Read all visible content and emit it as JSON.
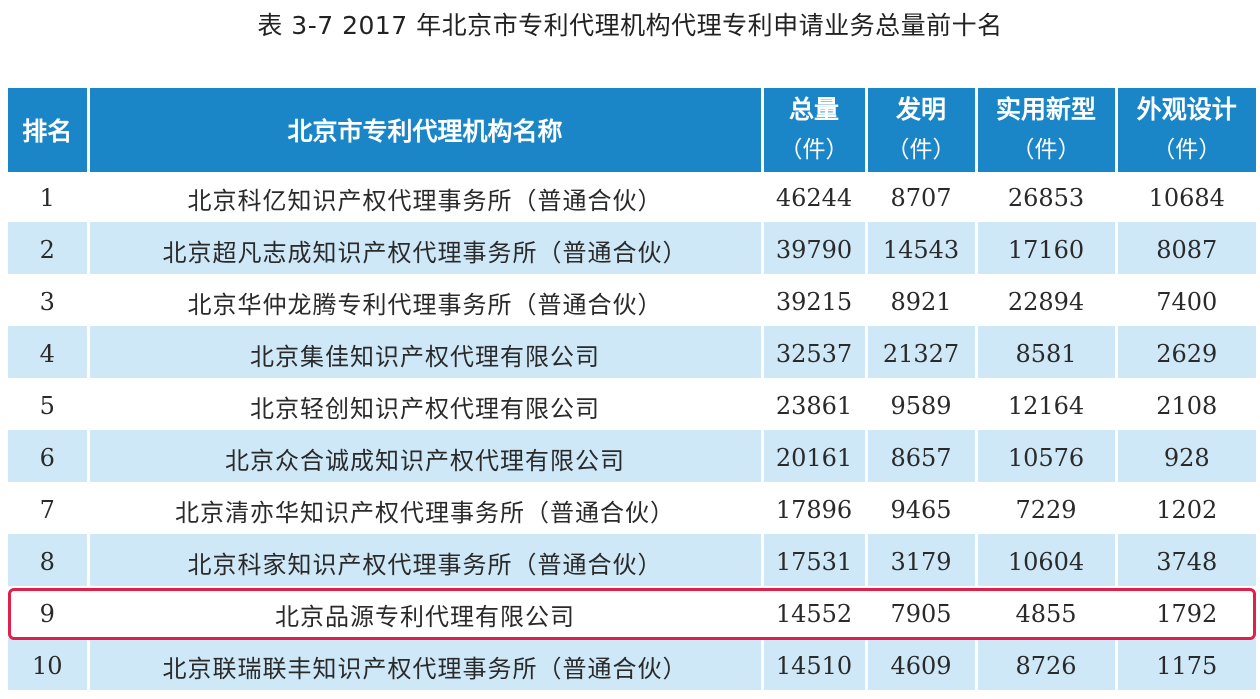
{
  "caption": "表 3-7 2017 年北京市专利代理机构代理专利申请业务总量前十名",
  "header": {
    "rank": "排名",
    "name": "北京市专利代理机构名称",
    "total": "总量",
    "invention": "发明",
    "utility": "实用新型",
    "design": "外观设计",
    "unit": "（件）"
  },
  "rows": [
    {
      "rank": "1",
      "name": "北京科亿知识产权代理事务所（普通合伙）",
      "total": "46244",
      "invention": "8707",
      "utility": "26853",
      "design": "10684"
    },
    {
      "rank": "2",
      "name": "北京超凡志成知识产权代理事务所（普通合伙）",
      "total": "39790",
      "invention": "14543",
      "utility": "17160",
      "design": "8087"
    },
    {
      "rank": "3",
      "name": "北京华仲龙腾专利代理事务所（普通合伙）",
      "total": "39215",
      "invention": "8921",
      "utility": "22894",
      "design": "7400"
    },
    {
      "rank": "4",
      "name": "北京集佳知识产权代理有限公司",
      "total": "32537",
      "invention": "21327",
      "utility": "8581",
      "design": "2629"
    },
    {
      "rank": "5",
      "name": "北京轻创知识产权代理有限公司",
      "total": "23861",
      "invention": "9589",
      "utility": "12164",
      "design": "2108"
    },
    {
      "rank": "6",
      "name": "北京众合诚成知识产权代理有限公司",
      "total": "20161",
      "invention": "8657",
      "utility": "10576",
      "design": "928"
    },
    {
      "rank": "7",
      "name": "北京清亦华知识产权代理事务所（普通合伙）",
      "total": "17896",
      "invention": "9465",
      "utility": "7229",
      "design": "1202"
    },
    {
      "rank": "8",
      "name": "北京科家知识产权代理事务所（普通合伙）",
      "total": "17531",
      "invention": "3179",
      "utility": "10604",
      "design": "3748"
    },
    {
      "rank": "9",
      "name": "北京品源专利代理有限公司",
      "total": "14552",
      "invention": "7905",
      "utility": "4855",
      "design": "1792"
    },
    {
      "rank": "10",
      "name": "北京联瑞联丰知识产权代理事务所（普通合伙）",
      "total": "14510",
      "invention": "4609",
      "utility": "8726",
      "design": "1175"
    }
  ],
  "highlighted_rank": "9",
  "colors": {
    "header_bg": "#1a86c8",
    "stripe_bg": "#cfe8f7",
    "highlight_border": "#e0204a"
  }
}
